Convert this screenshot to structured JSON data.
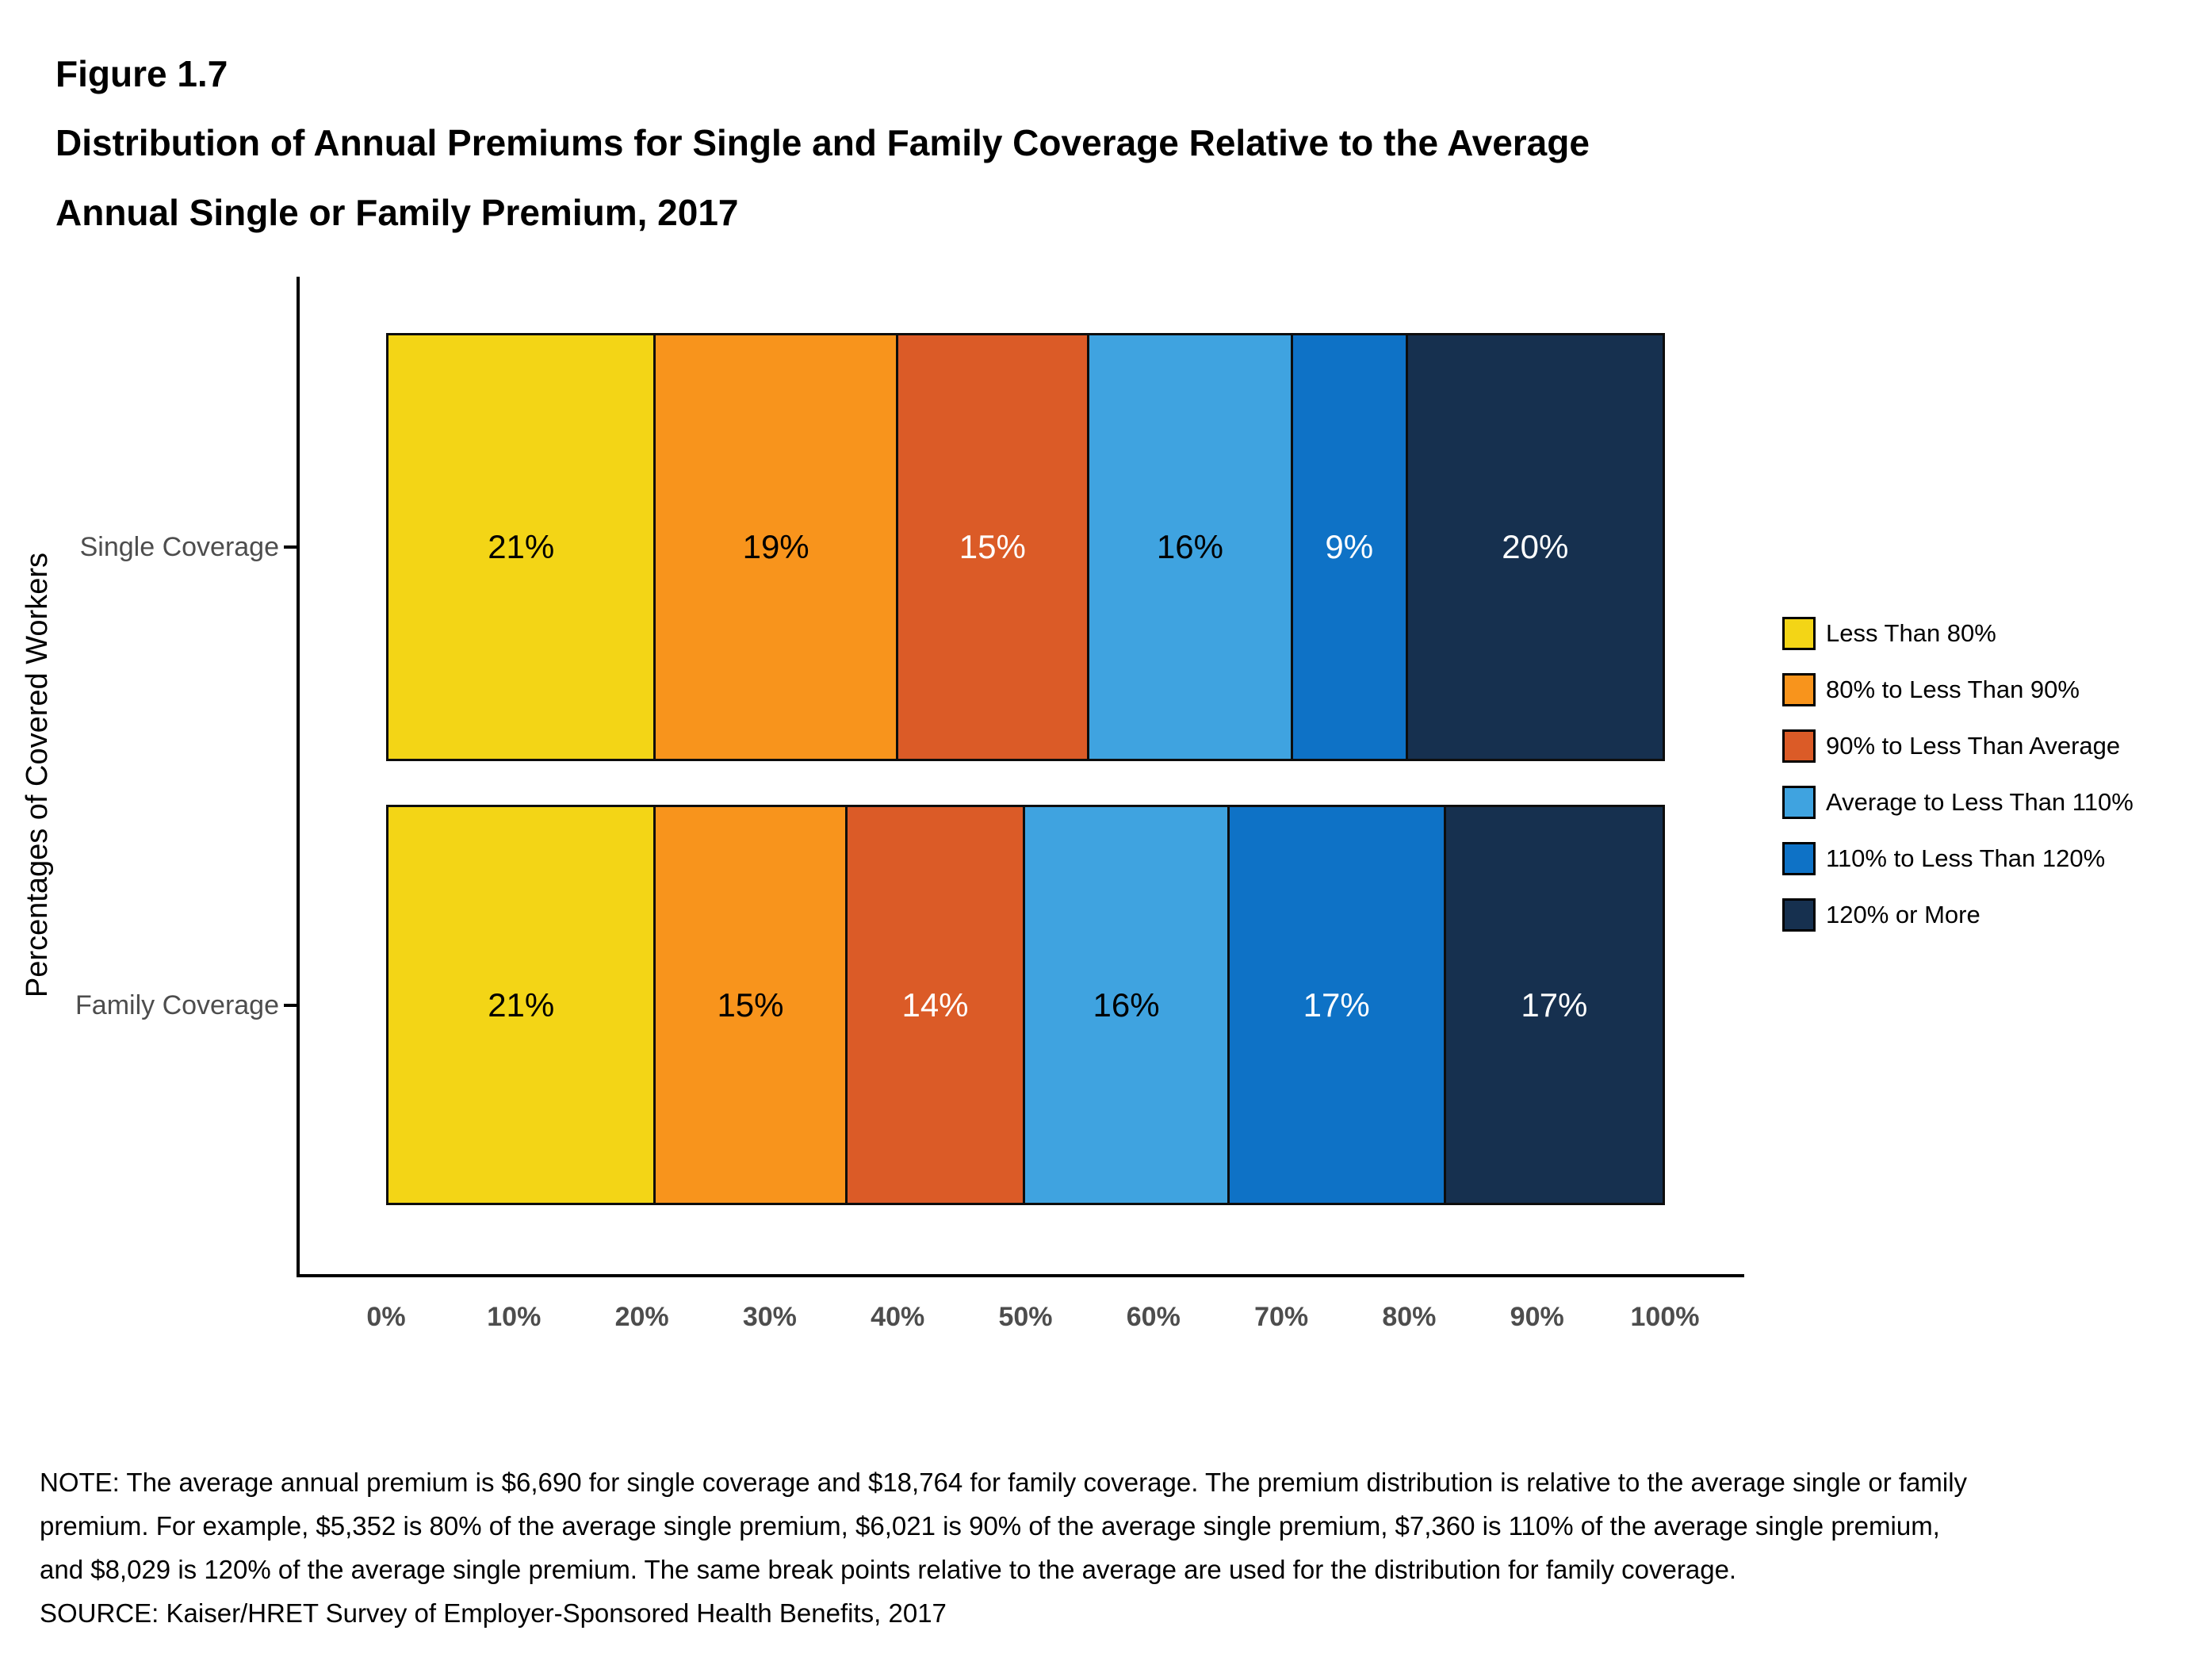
{
  "figure": {
    "label": "Figure 1.7",
    "title_line1": "Distribution of Annual Premiums for Single and Family Coverage Relative to the Average",
    "title_line2": "Annual Single or Family Premium, 2017"
  },
  "chart_data": {
    "type": "bar",
    "orientation": "horizontal",
    "stacked": true,
    "unit": "%",
    "categories": [
      "Single Coverage",
      "Family Coverage"
    ],
    "series": [
      {
        "name": "Less Than 80%",
        "color": "#F3D516",
        "label_color": "#000000",
        "values": [
          21,
          21
        ]
      },
      {
        "name": "80% to Less Than 90%",
        "color": "#F8941C",
        "label_color": "#000000",
        "values": [
          19,
          15
        ]
      },
      {
        "name": "90% to Less Than Average",
        "color": "#DB5B27",
        "label_color": "#FFFFFF",
        "values": [
          15,
          14
        ]
      },
      {
        "name": "Average to Less Than 110%",
        "color": "#3FA3E0",
        "label_color": "#000000",
        "values": [
          16,
          16
        ]
      },
      {
        "name": "110% to Less Than 120%",
        "color": "#0E72C6",
        "label_color": "#FFFFFF",
        "values": [
          9,
          17
        ]
      },
      {
        "name": "120% or More",
        "color": "#16304F",
        "label_color": "#FFFFFF",
        "values": [
          20,
          17
        ]
      }
    ],
    "ylabel": "Percentages of Covered Workers",
    "x_ticks": [
      "0%",
      "10%",
      "20%",
      "30%",
      "40%",
      "50%",
      "60%",
      "70%",
      "80%",
      "90%",
      "100%"
    ],
    "xlim": [
      0,
      100
    ],
    "grid": false,
    "legend_position": "right"
  },
  "note": "NOTE: The average annual premium is $6,690 for single coverage and $18,764 for family coverage. The premium distribution is relative to the average single or family premium. For example, $5,352 is 80% of the average single premium, $6,021 is 90% of the average single premium, $7,360 is 110% of the average single premium, and $8,029 is 120% of the average single premium. The same break points relative to the average are used for the distribution for family coverage.",
  "source": "SOURCE: Kaiser/HRET Survey of Employer-Sponsored Health Benefits, 2017"
}
